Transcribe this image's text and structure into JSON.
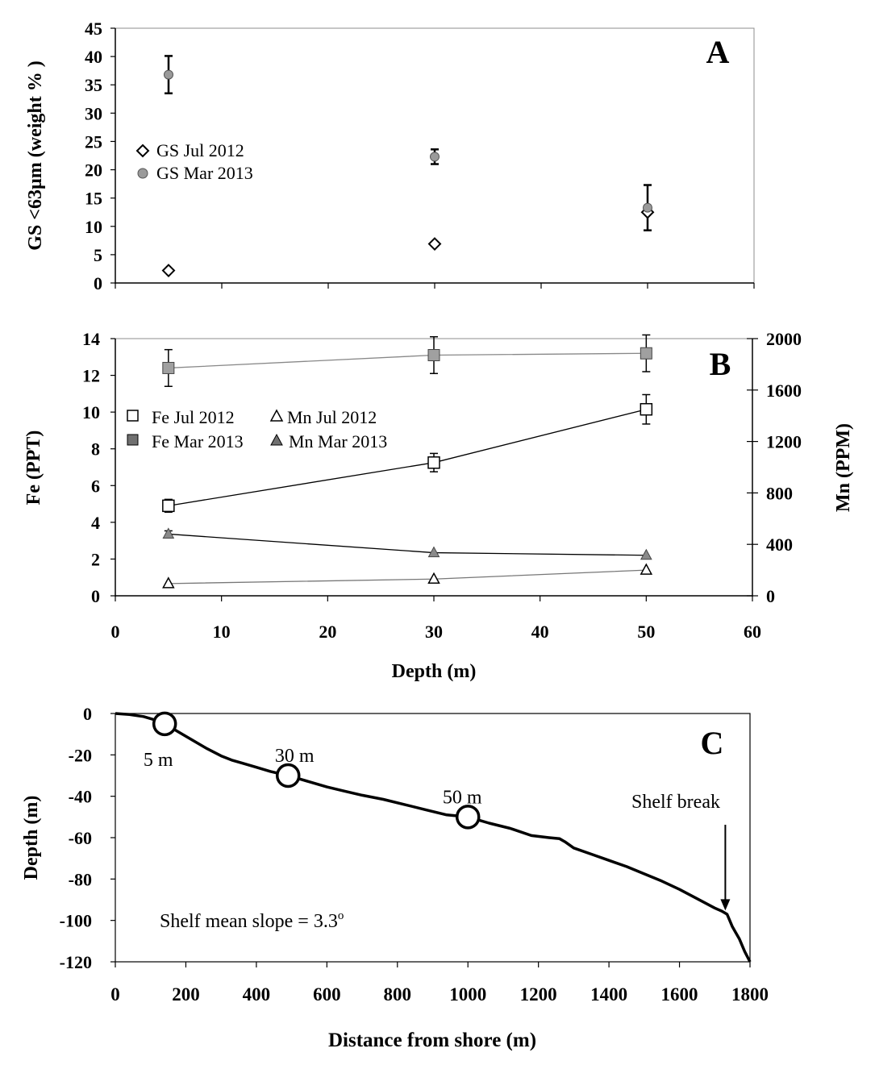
{
  "chart_data": [
    {
      "id": "A",
      "type": "scatter",
      "panel_letter": "A",
      "ylabel": "GS <63µm (weight % )",
      "ylim": [
        0,
        45
      ],
      "yticks": [
        "0",
        "5",
        "10",
        "15",
        "20",
        "25",
        "30",
        "35",
        "40",
        "45"
      ],
      "xlim": [
        0,
        60
      ],
      "legend_placement": "center-left",
      "series": [
        {
          "name": "GS Jul 2012",
          "marker": "open-diamond",
          "color": "#ffffff",
          "x": [
            5,
            30,
            50
          ],
          "y": [
            2.2,
            6.9,
            12.5
          ],
          "err": [
            0,
            0,
            0
          ]
        },
        {
          "name": "GS Mar 2013",
          "marker": "filled-circle",
          "color": "#9a9a9a",
          "x": [
            5,
            30,
            50
          ],
          "y": [
            36.8,
            22.3,
            13.3
          ],
          "err": [
            3.3,
            1.3,
            4.0
          ]
        }
      ]
    },
    {
      "id": "B",
      "type": "line",
      "panel_letter": "B",
      "xlabel": "Depth (m)",
      "ylabel": "Fe (PPT)",
      "y2label": "Mn (PPM)",
      "xlim": [
        0,
        60
      ],
      "xticks": [
        "0",
        "10",
        "20",
        "30",
        "40",
        "50",
        "60"
      ],
      "ylim": [
        0,
        14
      ],
      "yticks": [
        "0",
        "2",
        "4",
        "6",
        "8",
        "10",
        "12",
        "14"
      ],
      "y2lim": [
        0,
        2000
      ],
      "y2ticks": [
        "0",
        "400",
        "800",
        "1200",
        "1600",
        "2000"
      ],
      "legend_placement": "center-left",
      "series": [
        {
          "name": "Fe Jul 2012",
          "axis": "left",
          "marker": "open-square",
          "color": "#ffffff",
          "x": [
            5,
            30,
            50
          ],
          "y": [
            4.9,
            7.25,
            10.15
          ],
          "err": [
            0.35,
            0.5,
            0.8
          ]
        },
        {
          "name": "Fe Mar 2013",
          "axis": "left",
          "marker": "filled-square",
          "color": "#a0a0a0",
          "x": [
            5,
            30,
            50
          ],
          "y": [
            12.4,
            13.1,
            13.2
          ],
          "err": [
            1.0,
            1.0,
            1.0
          ]
        },
        {
          "name": "Mn Jul 2012",
          "axis": "right",
          "marker": "open-triangle",
          "color": "#ffffff",
          "x": [
            5,
            30,
            50
          ],
          "y": [
            95,
            130,
            200
          ],
          "err": [
            0,
            0,
            0
          ]
        },
        {
          "name": "Mn Mar 2013",
          "axis": "right",
          "marker": "filled-triangle",
          "color": "#8a8a8a",
          "x": [
            5,
            30,
            50
          ],
          "y": [
            480,
            335,
            315
          ],
          "err": [
            25,
            0,
            0
          ]
        }
      ]
    },
    {
      "id": "C",
      "type": "line",
      "panel_letter": "C",
      "xlabel": "Distance from shore (m)",
      "ylabel": "Depth (m)",
      "xlim": [
        0,
        1800
      ],
      "xticks": [
        "0",
        "200",
        "400",
        "600",
        "800",
        "1000",
        "1200",
        "1400",
        "1600",
        "1800"
      ],
      "ylim": [
        -120,
        0
      ],
      "yticks": [
        "0",
        "-20",
        "-40",
        "-60",
        "-80",
        "-100",
        "-120"
      ],
      "profile": {
        "x": [
          0,
          40,
          80,
          120,
          140,
          180,
          220,
          260,
          300,
          330,
          360,
          400,
          440,
          490,
          550,
          600,
          650,
          700,
          760,
          820,
          880,
          940,
          1000,
          1060,
          1120,
          1180,
          1230,
          1260,
          1275,
          1300,
          1350,
          1400,
          1450,
          1500,
          1550,
          1600,
          1650,
          1700,
          1720,
          1735,
          1750,
          1760,
          1770,
          1785,
          1800
        ],
        "y": [
          0,
          -0.5,
          -1.5,
          -3.5,
          -5,
          -9,
          -13,
          -17,
          -20.5,
          -22.5,
          -24,
          -26,
          -28,
          -30,
          -33,
          -35.5,
          -37.5,
          -39.5,
          -41.5,
          -44,
          -46.5,
          -49,
          -50,
          -53,
          -55.5,
          -59,
          -60,
          -60.5,
          -62,
          -65,
          -68,
          -71,
          -74,
          -77.5,
          -81,
          -85,
          -89.5,
          -94,
          -95.5,
          -97,
          -103,
          -106,
          -109,
          -115,
          -120
        ]
      },
      "stations": [
        {
          "label": "5 m",
          "x": 140,
          "y": -5
        },
        {
          "label": "30 m",
          "x": 490,
          "y": -30
        },
        {
          "label": "50 m",
          "x": 1000,
          "y": -50
        }
      ],
      "annotations": {
        "shelf_break": {
          "label": "Shelf break",
          "x": 1730,
          "y": -96
        },
        "slope_text": "Shelf mean slope = 3.3",
        "slope_sup": "o"
      }
    }
  ]
}
